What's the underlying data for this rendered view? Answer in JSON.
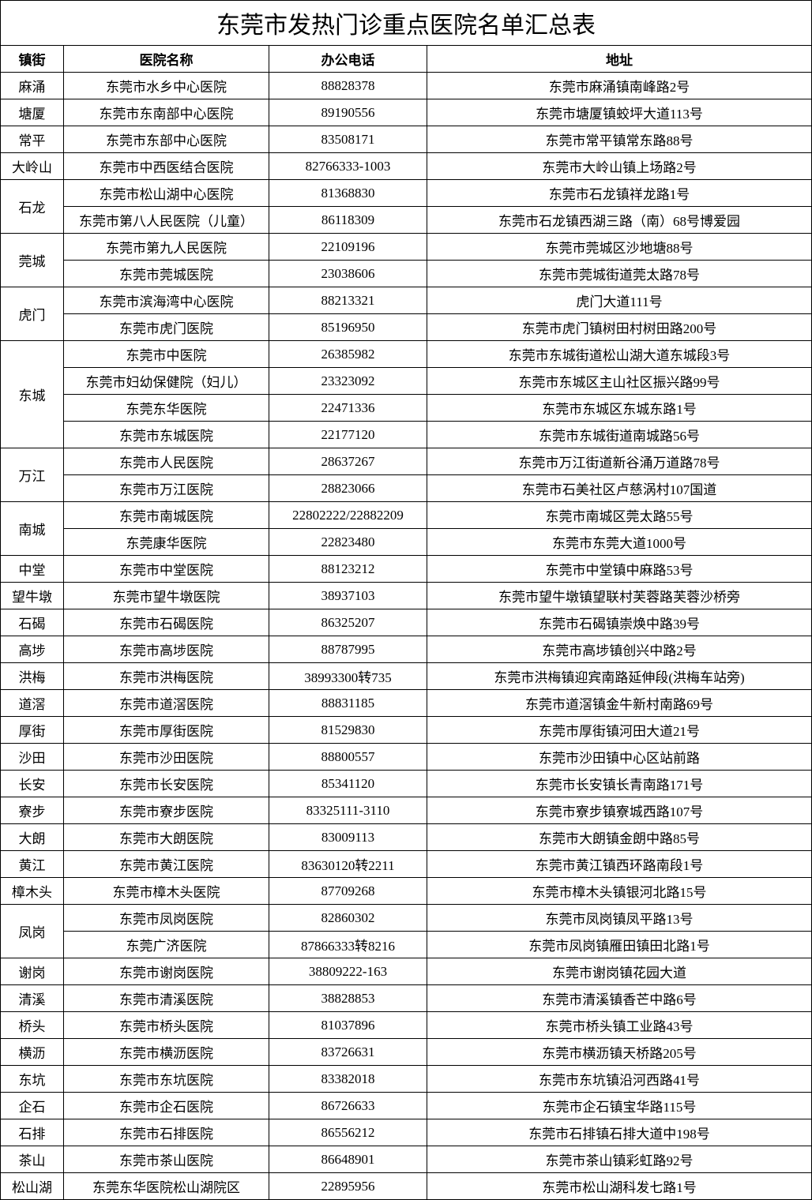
{
  "title": "东莞市发热门诊重点医院名单汇总表",
  "headers": {
    "town": "镇街",
    "hospital": "医院名称",
    "phone": "办公电话",
    "address": "地址"
  },
  "groups": [
    {
      "town": "麻涌",
      "hospitals": [
        {
          "name": "东莞市水乡中心医院",
          "phone": "88828378",
          "address": "东莞市麻涌镇南峰路2号"
        }
      ]
    },
    {
      "town": "塘厦",
      "hospitals": [
        {
          "name": "东莞市东南部中心医院",
          "phone": "89190556",
          "address": "东莞市塘厦镇蛟坪大道113号"
        }
      ]
    },
    {
      "town": "常平",
      "hospitals": [
        {
          "name": "东莞市东部中心医院",
          "phone": "83508171",
          "address": "东莞市常平镇常东路88号"
        }
      ]
    },
    {
      "town": "大岭山",
      "hospitals": [
        {
          "name": "东莞市中西医结合医院",
          "phone": "82766333-1003",
          "address": "东莞市大岭山镇上场路2号"
        }
      ]
    },
    {
      "town": "石龙",
      "hospitals": [
        {
          "name": "东莞市松山湖中心医院",
          "phone": "81368830",
          "address": "东莞市石龙镇祥龙路1号"
        },
        {
          "name": "东莞市第八人民医院（儿童）",
          "phone": "86118309",
          "address": "东莞市石龙镇西湖三路（南）68号博爱园"
        }
      ]
    },
    {
      "town": "莞城",
      "hospitals": [
        {
          "name": "东莞市第九人民医院",
          "phone": "22109196",
          "address": "东莞市莞城区沙地塘88号"
        },
        {
          "name": "东莞市莞城医院",
          "phone": "23038606",
          "address": "东莞市莞城街道莞太路78号"
        }
      ]
    },
    {
      "town": "虎门",
      "hospitals": [
        {
          "name": "东莞市滨海湾中心医院",
          "phone": "88213321",
          "address": "虎门大道111号"
        },
        {
          "name": "东莞市虎门医院",
          "phone": "85196950",
          "address": "东莞市虎门镇树田村树田路200号"
        }
      ]
    },
    {
      "town": "东城",
      "hospitals": [
        {
          "name": "东莞市中医院",
          "phone": "26385982",
          "address": "东莞市东城街道松山湖大道东城段3号"
        },
        {
          "name": "东莞市妇幼保健院（妇儿）",
          "phone": "23323092",
          "address": "东莞市东城区主山社区振兴路99号"
        },
        {
          "name": "东莞东华医院",
          "phone": "22471336",
          "address": "东莞市东城区东城东路1号"
        },
        {
          "name": "东莞市东城医院",
          "phone": "22177120",
          "address": "东莞市东城街道南城路56号"
        }
      ]
    },
    {
      "town": "万江",
      "hospitals": [
        {
          "name": "东莞市人民医院",
          "phone": "28637267",
          "address": "东莞市万江街道新谷涌万道路78号"
        },
        {
          "name": "东莞市万江医院",
          "phone": "28823066",
          "address": "东莞市石美社区卢慈涡村107国道"
        }
      ]
    },
    {
      "town": "南城",
      "hospitals": [
        {
          "name": "东莞市南城医院",
          "phone": "22802222/22882209",
          "address": "东莞市南城区莞太路55号"
        },
        {
          "name": "东莞康华医院",
          "phone": "22823480",
          "address": "东莞市东莞大道1000号"
        }
      ]
    },
    {
      "town": "中堂",
      "hospitals": [
        {
          "name": "东莞市中堂医院",
          "phone": "88123212",
          "address": "东莞市中堂镇中麻路53号"
        }
      ]
    },
    {
      "town": "望牛墩",
      "hospitals": [
        {
          "name": "东莞市望牛墩医院",
          "phone": "38937103",
          "address": "东莞市望牛墩镇望联村芙蓉路芙蓉沙桥旁"
        }
      ]
    },
    {
      "town": "石碣",
      "hospitals": [
        {
          "name": "东莞市石碣医院",
          "phone": "86325207",
          "address": "东莞市石碣镇崇焕中路39号"
        }
      ]
    },
    {
      "town": "高埗",
      "hospitals": [
        {
          "name": "东莞市高埗医院",
          "phone": "88787995",
          "address": "东莞市高埗镇创兴中路2号"
        }
      ]
    },
    {
      "town": "洪梅",
      "hospitals": [
        {
          "name": "东莞市洪梅医院",
          "phone": "38993300转735",
          "address": "东莞市洪梅镇迎宾南路延伸段(洪梅车站旁)"
        }
      ]
    },
    {
      "town": "道滘",
      "hospitals": [
        {
          "name": "东莞市道滘医院",
          "phone": "88831185",
          "address": "东莞市道滘镇金牛新村南路69号"
        }
      ]
    },
    {
      "town": "厚街",
      "hospitals": [
        {
          "name": "东莞市厚街医院",
          "phone": "81529830",
          "address": "东莞市厚街镇河田大道21号"
        }
      ]
    },
    {
      "town": "沙田",
      "hospitals": [
        {
          "name": "东莞市沙田医院",
          "phone": "88800557",
          "address": "东莞市沙田镇中心区站前路"
        }
      ]
    },
    {
      "town": "长安",
      "hospitals": [
        {
          "name": "东莞市长安医院",
          "phone": "85341120",
          "address": "东莞市长安镇长青南路171号"
        }
      ]
    },
    {
      "town": "寮步",
      "hospitals": [
        {
          "name": "东莞市寮步医院",
          "phone": "83325111-3110",
          "address": "东莞市寮步镇寮城西路107号"
        }
      ]
    },
    {
      "town": "大朗",
      "hospitals": [
        {
          "name": "东莞市大朗医院",
          "phone": "83009113",
          "address": "东莞市大朗镇金朗中路85号"
        }
      ]
    },
    {
      "town": "黄江",
      "hospitals": [
        {
          "name": "东莞市黄江医院",
          "phone": "83630120转2211",
          "address": "东莞市黄江镇西环路南段1号"
        }
      ]
    },
    {
      "town": "樟木头",
      "hospitals": [
        {
          "name": "东莞市樟木头医院",
          "phone": "87709268",
          "address": "东莞市樟木头镇银河北路15号"
        }
      ]
    },
    {
      "town": "凤岗",
      "hospitals": [
        {
          "name": "东莞市凤岗医院",
          "phone": "82860302",
          "address": "东莞市凤岗镇凤平路13号"
        },
        {
          "name": "东莞广济医院",
          "phone": "87866333转8216",
          "address": "东莞市凤岗镇雁田镇田北路1号"
        }
      ]
    },
    {
      "town": "谢岗",
      "hospitals": [
        {
          "name": "东莞市谢岗医院",
          "phone": "38809222-163",
          "address": "东莞市谢岗镇花园大道"
        }
      ]
    },
    {
      "town": "清溪",
      "hospitals": [
        {
          "name": "东莞市清溪医院",
          "phone": "38828853",
          "address": "东莞市清溪镇香芒中路6号"
        }
      ]
    },
    {
      "town": "桥头",
      "hospitals": [
        {
          "name": "东莞市桥头医院",
          "phone": "81037896",
          "address": "东莞市桥头镇工业路43号"
        }
      ]
    },
    {
      "town": "横沥",
      "hospitals": [
        {
          "name": "东莞市横沥医院",
          "phone": "83726631",
          "address": "东莞市横沥镇天桥路205号"
        }
      ]
    },
    {
      "town": "东坑",
      "hospitals": [
        {
          "name": "东莞市东坑医院",
          "phone": "83382018",
          "address": "东莞市东坑镇沿河西路41号"
        }
      ]
    },
    {
      "town": "企石",
      "hospitals": [
        {
          "name": "东莞市企石医院",
          "phone": "86726633",
          "address": "东莞市企石镇宝华路115号"
        }
      ]
    },
    {
      "town": "石排",
      "hospitals": [
        {
          "name": "东莞市石排医院",
          "phone": "86556212",
          "address": "东莞市石排镇石排大道中198号"
        }
      ]
    },
    {
      "town": "茶山",
      "hospitals": [
        {
          "name": "东莞市茶山医院",
          "phone": "86648901",
          "address": "东莞市茶山镇彩虹路92号"
        }
      ]
    },
    {
      "town": "松山湖",
      "hospitals": [
        {
          "name": "东莞东华医院松山湖院区",
          "phone": "22895956",
          "address": "东莞市松山湖科发七路1号"
        }
      ]
    }
  ]
}
